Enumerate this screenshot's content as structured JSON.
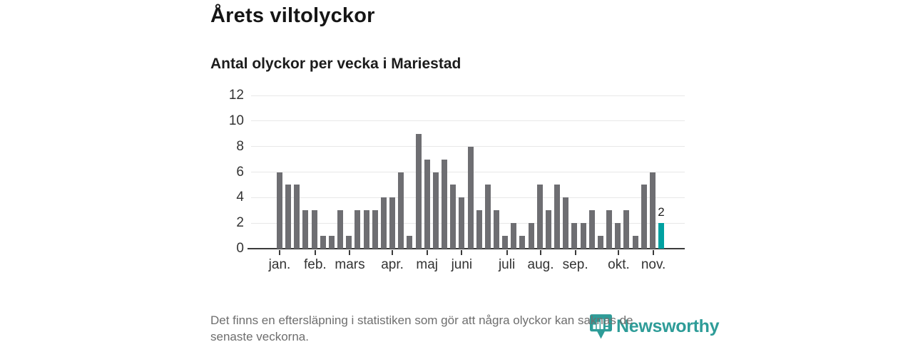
{
  "title": "Årets viltolyckor",
  "subtitle": "Antal olyckor per vecka i Mariestad",
  "footer": {
    "lines": [
      "Det finns en eftersläpning i statistiken som gör att några olyckor kan saknas de",
      "senaste veckorna."
    ]
  },
  "logo": {
    "name": "Newsworthy"
  },
  "colors": {
    "bar": "#6e6e72",
    "highlight": "#00a1a1",
    "grid": "#e8e8e8",
    "axis": "#3a3a3a",
    "tick_label": "#333333",
    "footer_text": "#6e6e6e",
    "logo": "#2e9c98"
  },
  "chart_data": {
    "type": "bar",
    "title": "Årets viltolyckor",
    "subtitle": "Antal olyckor per vecka i Mariestad",
    "x_unit": "vecka (week 1–45)",
    "ylabel": "Antal olyckor",
    "ylim": [
      0,
      12
    ],
    "y_ticks": [
      0,
      2,
      4,
      6,
      8,
      10,
      12
    ],
    "grid": true,
    "legend": false,
    "values": [
      6,
      5,
      5,
      3,
      3,
      1,
      1,
      3,
      1,
      3,
      3,
      3,
      4,
      4,
      6,
      1,
      9,
      7,
      6,
      7,
      5,
      4,
      8,
      3,
      5,
      3,
      1,
      2,
      1,
      2,
      5,
      3,
      5,
      4,
      2,
      2,
      3,
      1,
      3,
      2,
      3,
      1,
      5,
      6,
      2
    ],
    "highlight_index": 44,
    "highlight_label": "2",
    "months": [
      {
        "label": "jan.",
        "week": 1.0
      },
      {
        "label": "feb.",
        "week": 5.1
      },
      {
        "label": "mars",
        "week": 9.1
      },
      {
        "label": "apr.",
        "week": 14.0
      },
      {
        "label": "maj",
        "week": 18.0
      },
      {
        "label": "juni",
        "week": 22.0
      },
      {
        "label": "juli",
        "week": 27.2
      },
      {
        "label": "aug.",
        "week": 31.1
      },
      {
        "label": "sep.",
        "week": 35.1
      },
      {
        "label": "okt.",
        "week": 40.1
      },
      {
        "label": "nov.",
        "week": 44.1
      }
    ]
  }
}
